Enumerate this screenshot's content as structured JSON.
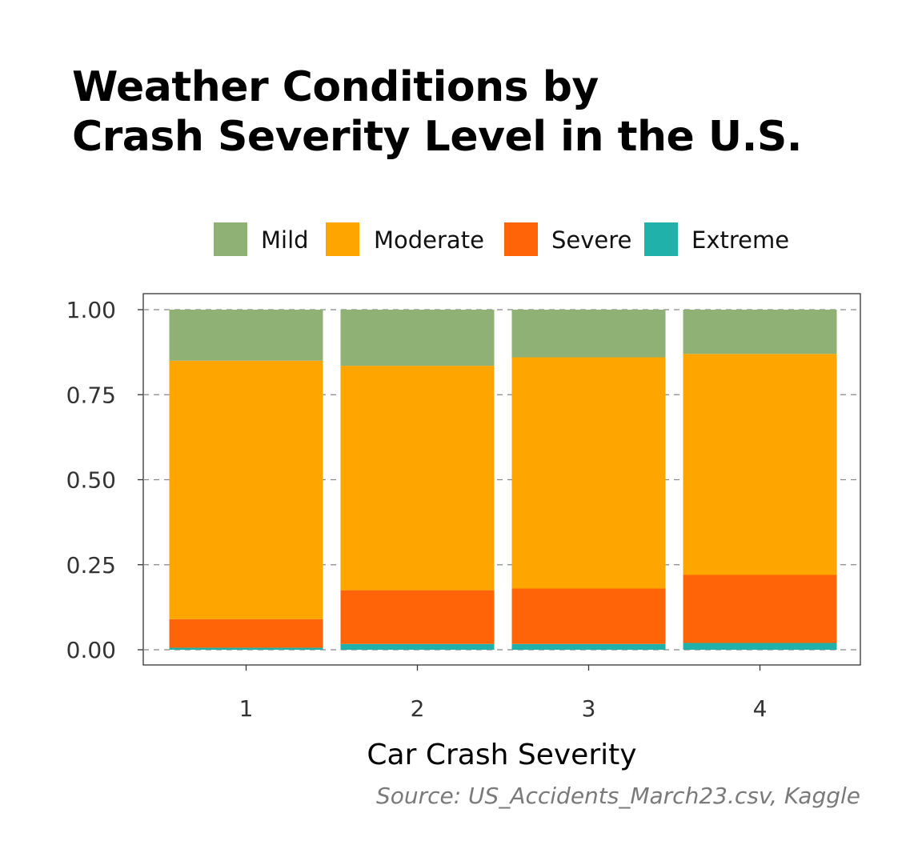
{
  "chart_data": {
    "type": "bar",
    "stacked": true,
    "title_lines": [
      "Weather Conditions by",
      "Crash Severity Level in the U.S."
    ],
    "xlabel": "Car Crash Severity",
    "ylabel": "",
    "caption": "Source: US_Accidents_March23.csv, Kaggle",
    "categories": [
      "1",
      "2",
      "3",
      "4"
    ],
    "ylim": [
      0,
      1
    ],
    "yticks": [
      "0.00",
      "0.25",
      "0.50",
      "0.75",
      "1.00"
    ],
    "grid": "dashed horizontal",
    "legend_position": "top",
    "series": [
      {
        "name": "Mild",
        "color": "#8FB175",
        "values": [
          0.15,
          0.165,
          0.14,
          0.13
        ]
      },
      {
        "name": "Moderate",
        "color": "#FFA500",
        "values": [
          0.76,
          0.66,
          0.68,
          0.65
        ]
      },
      {
        "name": "Severe",
        "color": "#FF6508",
        "values": [
          0.084,
          0.158,
          0.163,
          0.2
        ]
      },
      {
        "name": "Extreme",
        "color": "#20B2AA",
        "values": [
          0.006,
          0.017,
          0.017,
          0.02
        ]
      }
    ]
  }
}
